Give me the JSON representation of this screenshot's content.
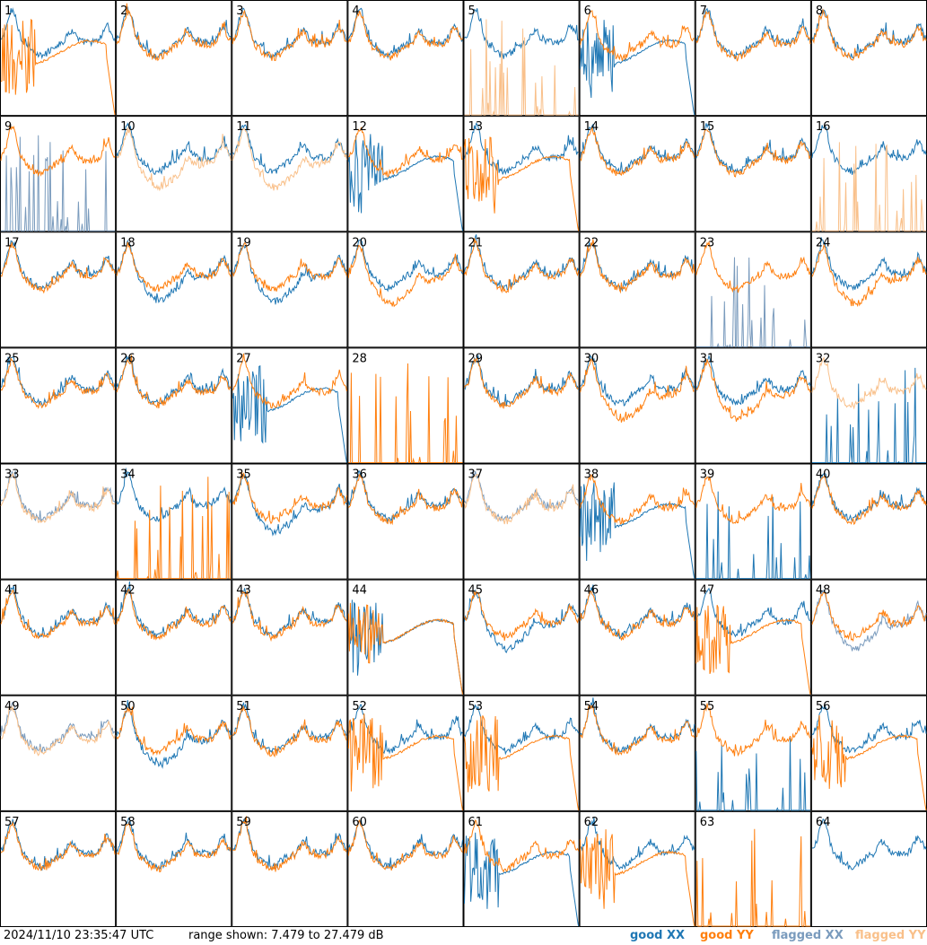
{
  "footer": {
    "timestamp": "2024/11/10 23:35:47 UTC",
    "range": "range shown: 7.479 to 27.479 dB",
    "legend": [
      {
        "label": "good XX",
        "color": "#1f77b4"
      },
      {
        "label": "good YY",
        "color": "#ff7f0e"
      },
      {
        "label": "flagged XX",
        "color": "#7a9bbd"
      },
      {
        "label": "flagged YY",
        "color": "#f9c08a"
      }
    ]
  },
  "chart_data": {
    "type": "line",
    "grid": "8x8 small multiples",
    "ylim_db": [
      7.479,
      27.479
    ],
    "panels": [
      {
        "id": "1",
        "xx": "good",
        "yy": "good",
        "xx_shape": "normal",
        "yy_shape": "dropout"
      },
      {
        "id": "2",
        "xx": "good",
        "yy": "good",
        "xx_shape": "normal",
        "yy_shape": "normal"
      },
      {
        "id": "3",
        "xx": "good",
        "yy": "good",
        "xx_shape": "normal",
        "yy_shape": "normal"
      },
      {
        "id": "4",
        "xx": "good",
        "yy": "good",
        "xx_shape": "normal",
        "yy_shape": "normal"
      },
      {
        "id": "5",
        "xx": "good",
        "yy": "flagged",
        "xx_shape": "normal",
        "yy_shape": "spike"
      },
      {
        "id": "6",
        "xx": "good",
        "yy": "good",
        "xx_shape": "dropout",
        "yy_shape": "normal"
      },
      {
        "id": "7",
        "xx": "good",
        "yy": "good",
        "xx_shape": "normal",
        "yy_shape": "normal"
      },
      {
        "id": "8",
        "xx": "good",
        "yy": "good",
        "xx_shape": "normal",
        "yy_shape": "normal"
      },
      {
        "id": "9",
        "xx": "flagged",
        "yy": "good",
        "xx_shape": "spike",
        "yy_shape": "normal"
      },
      {
        "id": "10",
        "xx": "good",
        "yy": "flagged",
        "xx_shape": "normal",
        "yy_shape": "low"
      },
      {
        "id": "11",
        "xx": "good",
        "yy": "flagged",
        "xx_shape": "normal",
        "yy_shape": "low"
      },
      {
        "id": "12",
        "xx": "good",
        "yy": "good",
        "xx_shape": "dropout",
        "yy_shape": "normal"
      },
      {
        "id": "13",
        "xx": "good",
        "yy": "good",
        "xx_shape": "normal",
        "yy_shape": "dropout"
      },
      {
        "id": "14",
        "xx": "good",
        "yy": "good",
        "xx_shape": "normal",
        "yy_shape": "normal"
      },
      {
        "id": "15",
        "xx": "good",
        "yy": "good",
        "xx_shape": "normal",
        "yy_shape": "normal"
      },
      {
        "id": "16",
        "xx": "good",
        "yy": "flagged",
        "xx_shape": "normal",
        "yy_shape": "spike"
      },
      {
        "id": "17",
        "xx": "good",
        "yy": "good",
        "xx_shape": "normal",
        "yy_shape": "normal"
      },
      {
        "id": "18",
        "xx": "good",
        "yy": "good",
        "xx_shape": "low",
        "yy_shape": "normal"
      },
      {
        "id": "19",
        "xx": "good",
        "yy": "good",
        "xx_shape": "low",
        "yy_shape": "normal"
      },
      {
        "id": "20",
        "xx": "good",
        "yy": "good",
        "xx_shape": "normal",
        "yy_shape": "low"
      },
      {
        "id": "21",
        "xx": "good",
        "yy": "good",
        "xx_shape": "normal",
        "yy_shape": "normal"
      },
      {
        "id": "22",
        "xx": "good",
        "yy": "good",
        "xx_shape": "normal",
        "yy_shape": "normal"
      },
      {
        "id": "23",
        "xx": "flagged",
        "yy": "good",
        "xx_shape": "spike",
        "yy_shape": "normal"
      },
      {
        "id": "24",
        "xx": "good",
        "yy": "good",
        "xx_shape": "normal",
        "yy_shape": "low"
      },
      {
        "id": "25",
        "xx": "good",
        "yy": "good",
        "xx_shape": "normal",
        "yy_shape": "normal"
      },
      {
        "id": "26",
        "xx": "good",
        "yy": "good",
        "xx_shape": "normal",
        "yy_shape": "normal"
      },
      {
        "id": "27",
        "xx": "good",
        "yy": "good",
        "xx_shape": "dropout",
        "yy_shape": "normal"
      },
      {
        "id": "28",
        "xx": "none",
        "yy": "good",
        "xx_shape": "none",
        "yy_shape": "spike"
      },
      {
        "id": "29",
        "xx": "good",
        "yy": "good",
        "xx_shape": "normal",
        "yy_shape": "normal"
      },
      {
        "id": "30",
        "xx": "good",
        "yy": "good",
        "xx_shape": "normal",
        "yy_shape": "low"
      },
      {
        "id": "31",
        "xx": "good",
        "yy": "good",
        "xx_shape": "normal",
        "yy_shape": "low"
      },
      {
        "id": "32",
        "xx": "good",
        "yy": "flagged",
        "xx_shape": "spike",
        "yy_shape": "normal"
      },
      {
        "id": "33",
        "xx": "flagged",
        "yy": "flagged",
        "xx_shape": "normal",
        "yy_shape": "normal"
      },
      {
        "id": "34",
        "xx": "good",
        "yy": "good",
        "xx_shape": "normal",
        "yy_shape": "spike"
      },
      {
        "id": "35",
        "xx": "good",
        "yy": "good",
        "xx_shape": "low",
        "yy_shape": "normal"
      },
      {
        "id": "36",
        "xx": "good",
        "yy": "good",
        "xx_shape": "normal",
        "yy_shape": "normal"
      },
      {
        "id": "37",
        "xx": "flagged",
        "yy": "flagged",
        "xx_shape": "normal",
        "yy_shape": "normal"
      },
      {
        "id": "38",
        "xx": "good",
        "yy": "good",
        "xx_shape": "dropout",
        "yy_shape": "normal"
      },
      {
        "id": "39",
        "xx": "good",
        "yy": "good",
        "xx_shape": "spike",
        "yy_shape": "normal"
      },
      {
        "id": "40",
        "xx": "good",
        "yy": "good",
        "xx_shape": "normal",
        "yy_shape": "normal"
      },
      {
        "id": "41",
        "xx": "good",
        "yy": "good",
        "xx_shape": "normal",
        "yy_shape": "normal"
      },
      {
        "id": "42",
        "xx": "good",
        "yy": "good",
        "xx_shape": "normal",
        "yy_shape": "normal"
      },
      {
        "id": "43",
        "xx": "good",
        "yy": "good",
        "xx_shape": "normal",
        "yy_shape": "normal"
      },
      {
        "id": "44",
        "xx": "good",
        "yy": "good",
        "xx_shape": "dropout",
        "yy_shape": "dropout"
      },
      {
        "id": "45",
        "xx": "good",
        "yy": "good",
        "xx_shape": "low",
        "yy_shape": "normal"
      },
      {
        "id": "46",
        "xx": "good",
        "yy": "good",
        "xx_shape": "normal",
        "yy_shape": "normal"
      },
      {
        "id": "47",
        "xx": "good",
        "yy": "good",
        "xx_shape": "normal",
        "yy_shape": "dropout"
      },
      {
        "id": "48",
        "xx": "flagged",
        "yy": "good",
        "xx_shape": "low",
        "yy_shape": "normal"
      },
      {
        "id": "49",
        "xx": "flagged",
        "yy": "flagged",
        "xx_shape": "normal",
        "yy_shape": "normal"
      },
      {
        "id": "50",
        "xx": "good",
        "yy": "good",
        "xx_shape": "low",
        "yy_shape": "normal"
      },
      {
        "id": "51",
        "xx": "good",
        "yy": "good",
        "xx_shape": "normal",
        "yy_shape": "normal"
      },
      {
        "id": "52",
        "xx": "good",
        "yy": "good",
        "xx_shape": "normal",
        "yy_shape": "dropout"
      },
      {
        "id": "53",
        "xx": "good",
        "yy": "good",
        "xx_shape": "normal",
        "yy_shape": "dropout"
      },
      {
        "id": "54",
        "xx": "good",
        "yy": "good",
        "xx_shape": "normal",
        "yy_shape": "normal"
      },
      {
        "id": "55",
        "xx": "good",
        "yy": "good",
        "xx_shape": "spike",
        "yy_shape": "normal"
      },
      {
        "id": "56",
        "xx": "good",
        "yy": "good",
        "xx_shape": "normal",
        "yy_shape": "dropout"
      },
      {
        "id": "57",
        "xx": "good",
        "yy": "good",
        "xx_shape": "normal",
        "yy_shape": "normal"
      },
      {
        "id": "58",
        "xx": "good",
        "yy": "good",
        "xx_shape": "normal",
        "yy_shape": "normal"
      },
      {
        "id": "59",
        "xx": "good",
        "yy": "good",
        "xx_shape": "normal",
        "yy_shape": "normal"
      },
      {
        "id": "60",
        "xx": "good",
        "yy": "good",
        "xx_shape": "normal",
        "yy_shape": "normal"
      },
      {
        "id": "61",
        "xx": "good",
        "yy": "good",
        "xx_shape": "dropout",
        "yy_shape": "normal"
      },
      {
        "id": "62",
        "xx": "good",
        "yy": "good",
        "xx_shape": "normal",
        "yy_shape": "dropout"
      },
      {
        "id": "63",
        "xx": "none",
        "yy": "good",
        "xx_shape": "none",
        "yy_shape": "spike"
      },
      {
        "id": "64",
        "xx": "good",
        "yy": "none",
        "xx_shape": "normal",
        "yy_shape": "none"
      }
    ]
  }
}
